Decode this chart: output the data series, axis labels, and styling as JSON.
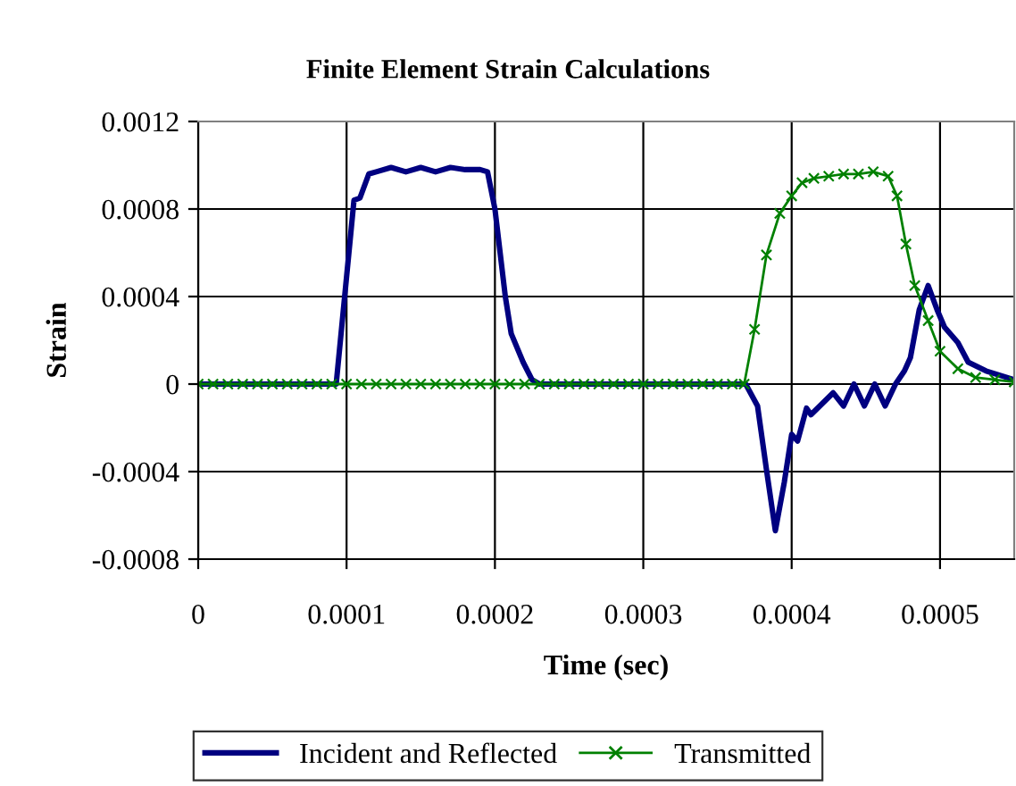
{
  "chart_data": {
    "type": "line",
    "title": "Finite Element Strain Calculations",
    "xlabel": "Time (sec)",
    "ylabel": "Strain",
    "xlim": [
      0,
      0.00055
    ],
    "xticks": [
      0,
      0.0001,
      0.0002,
      0.0003,
      0.0004,
      0.0005
    ],
    "ylim": [
      -0.0008,
      0.0012
    ],
    "yticks": [
      -0.0008,
      -0.0004,
      0,
      0.0004,
      0.0008,
      0.0012
    ],
    "grid": true,
    "legend": "bottom",
    "series": [
      {
        "name": "Incident and Reflected",
        "color": "#000080",
        "marker": "none",
        "x": [
          0,
          5e-05,
          9.3e-05,
          0.000105,
          0.000109,
          0.000115,
          0.00012,
          0.00013,
          0.00014,
          0.00015,
          0.00016,
          0.00017,
          0.00018,
          0.00019,
          0.000195,
          0.0002,
          0.000207,
          0.000211,
          0.000219,
          0.000225,
          0.00023,
          0.0003,
          0.000369,
          0.000377,
          0.000383,
          0.000389,
          0.000395,
          0.0004,
          0.000404,
          0.00041,
          0.000413,
          0.000419,
          0.000428,
          0.000435,
          0.000442,
          0.000449,
          0.000456,
          0.000463,
          0.00047,
          0.000476,
          0.00048,
          0.000486,
          0.000492,
          0.000498,
          0.000503,
          0.000512,
          0.000519,
          0.000531,
          0.00055
        ],
        "values": [
          0,
          0,
          0,
          0.00084,
          0.00085,
          0.00096,
          0.00097,
          0.00099,
          0.00097,
          0.00099,
          0.00097,
          0.00099,
          0.00098,
          0.00098,
          0.00097,
          0.0008,
          0.0004,
          0.00023,
          0.0001,
          2e-05,
          0,
          0,
          0,
          -0.0001,
          -0.00039,
          -0.00067,
          -0.00045,
          -0.00023,
          -0.00026,
          -0.00011,
          -0.00014,
          -0.0001,
          -4e-05,
          -0.0001,
          0,
          -0.0001,
          0,
          -0.0001,
          0,
          6e-05,
          0.00012,
          0.00034,
          0.00045,
          0.00034,
          0.00026,
          0.00019,
          0.0001,
          6e-05,
          2e-05
        ]
      },
      {
        "name": "Transmitted",
        "color": "#008000",
        "marker": "cross",
        "x": [
          0,
          1e-05,
          2e-05,
          3e-05,
          4e-05,
          5e-05,
          6e-05,
          7e-05,
          8e-05,
          9e-05,
          0.0001,
          0.00011,
          0.00012,
          0.00013,
          0.00014,
          0.00015,
          0.00016,
          0.00017,
          0.00018,
          0.00019,
          0.0002,
          0.00021,
          0.00022,
          0.00023,
          0.00024,
          0.00025,
          0.00026,
          0.00027,
          0.00028,
          0.00029,
          0.0003,
          0.00031,
          0.00032,
          0.00033,
          0.00034,
          0.00035,
          0.00036,
          0.000368,
          0.000375,
          0.000383,
          0.000392,
          0.0004,
          0.000407,
          0.000415,
          0.000425,
          0.000435,
          0.000445,
          0.000455,
          0.000465,
          0.000471,
          0.000477,
          0.000483,
          0.000492,
          0.0005,
          0.000512,
          0.000524,
          0.000537,
          0.00055
        ],
        "values": [
          0,
          0,
          0,
          0,
          0,
          0,
          0,
          0,
          0,
          0,
          0,
          0,
          0,
          0,
          0,
          0,
          0,
          0,
          0,
          0,
          0,
          0,
          0,
          0,
          0,
          0,
          0,
          0,
          0,
          0,
          0,
          0,
          0,
          0,
          0,
          0,
          0,
          0,
          0.00025,
          0.00059,
          0.00078,
          0.00086,
          0.00092,
          0.00094,
          0.00095,
          0.00096,
          0.00096,
          0.00097,
          0.00095,
          0.00086,
          0.00064,
          0.00045,
          0.00029,
          0.00015,
          7e-05,
          3e-05,
          2e-05,
          1e-05
        ]
      }
    ]
  }
}
